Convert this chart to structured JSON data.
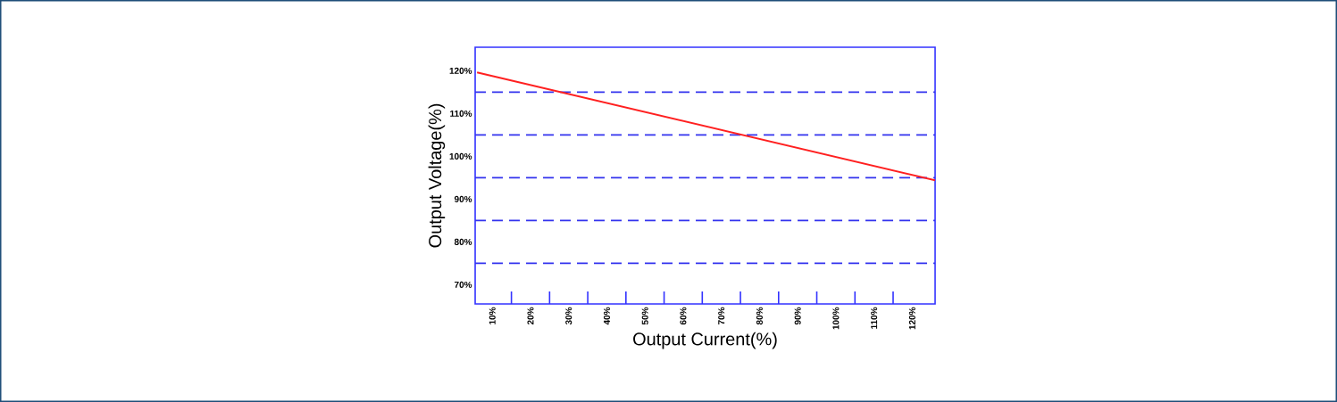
{
  "chart_data": {
    "type": "line",
    "xlabel": "Output Current(%)",
    "ylabel": "Output Voltage(%)",
    "x": [
      6,
      126
    ],
    "series": [
      {
        "color": "#ff2020",
        "values": [
          119.6,
          94.4
        ]
      }
    ],
    "xlim": [
      5.5,
      126
    ],
    "ylim": [
      65.5,
      125.5
    ],
    "xticks": [
      {
        "value": 10,
        "label": "10%"
      },
      {
        "value": 15,
        "label": null
      },
      {
        "value": 20,
        "label": "20%"
      },
      {
        "value": 25,
        "label": null
      },
      {
        "value": 30,
        "label": "30%"
      },
      {
        "value": 35,
        "label": null
      },
      {
        "value": 40,
        "label": "40%"
      },
      {
        "value": 45,
        "label": null
      },
      {
        "value": 50,
        "label": "50%"
      },
      {
        "value": 55,
        "label": null
      },
      {
        "value": 60,
        "label": "60%"
      },
      {
        "value": 65,
        "label": null
      },
      {
        "value": 70,
        "label": "70%"
      },
      {
        "value": 75,
        "label": null
      },
      {
        "value": 80,
        "label": "80%"
      },
      {
        "value": 85,
        "label": null
      },
      {
        "value": 90,
        "label": "90%"
      },
      {
        "value": 95,
        "label": null
      },
      {
        "value": 100,
        "label": "100%"
      },
      {
        "value": 105,
        "label": null
      },
      {
        "value": 110,
        "label": "110%"
      },
      {
        "value": 115,
        "label": null
      },
      {
        "value": 120,
        "label": "120%"
      }
    ],
    "yticks": [
      {
        "value": 70,
        "label": "70%"
      },
      {
        "value": 80,
        "label": "80%"
      },
      {
        "value": 90,
        "label": "90%"
      },
      {
        "value": 100,
        "label": "100%"
      },
      {
        "value": 110,
        "label": "110%"
      },
      {
        "value": 120,
        "label": "120%"
      }
    ],
    "ref_lines": [
      {
        "axis": "y",
        "value": 75,
        "color": "#3333ee",
        "line_style": "dashed"
      },
      {
        "axis": "y",
        "value": 85,
        "color": "#3333ee",
        "line_style": "dashed"
      },
      {
        "axis": "y",
        "value": 95,
        "color": "#3333ee",
        "line_style": "dashed"
      },
      {
        "axis": "y",
        "value": 105,
        "color": "#3333ee",
        "line_style": "dashed"
      },
      {
        "axis": "y",
        "value": 115,
        "color": "#3333ee",
        "line_style": "dashed"
      }
    ],
    "grid": false,
    "marker": "none",
    "line_style": "solid"
  }
}
